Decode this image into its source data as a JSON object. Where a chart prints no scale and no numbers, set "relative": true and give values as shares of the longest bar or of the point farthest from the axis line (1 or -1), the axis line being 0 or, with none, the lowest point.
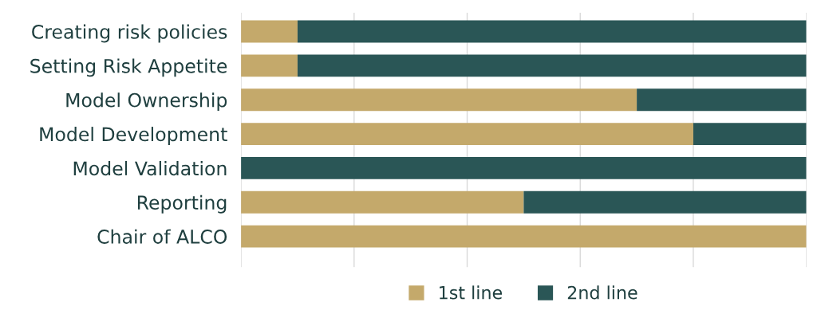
{
  "chart_data": {
    "type": "bar",
    "orientation": "horizontal",
    "stacked": true,
    "relative": true,
    "grid": "x",
    "legend": "bottom",
    "categories": [
      "Creating risk policies",
      "Setting Risk Appetite",
      "Model Ownership",
      "Model Development",
      "Model Validation",
      "Reporting",
      "Chair of ALCO"
    ],
    "series": [
      {
        "name": "1st line",
        "color": "#c4a96b",
        "values": [
          0.1,
          0.1,
          0.7,
          0.8,
          0,
          0.5,
          1
        ]
      },
      {
        "name": "2nd line",
        "color": "#2a5656",
        "values": [
          0.9,
          0.9,
          0.3,
          0.2,
          1,
          0.5,
          0
        ]
      }
    ]
  }
}
